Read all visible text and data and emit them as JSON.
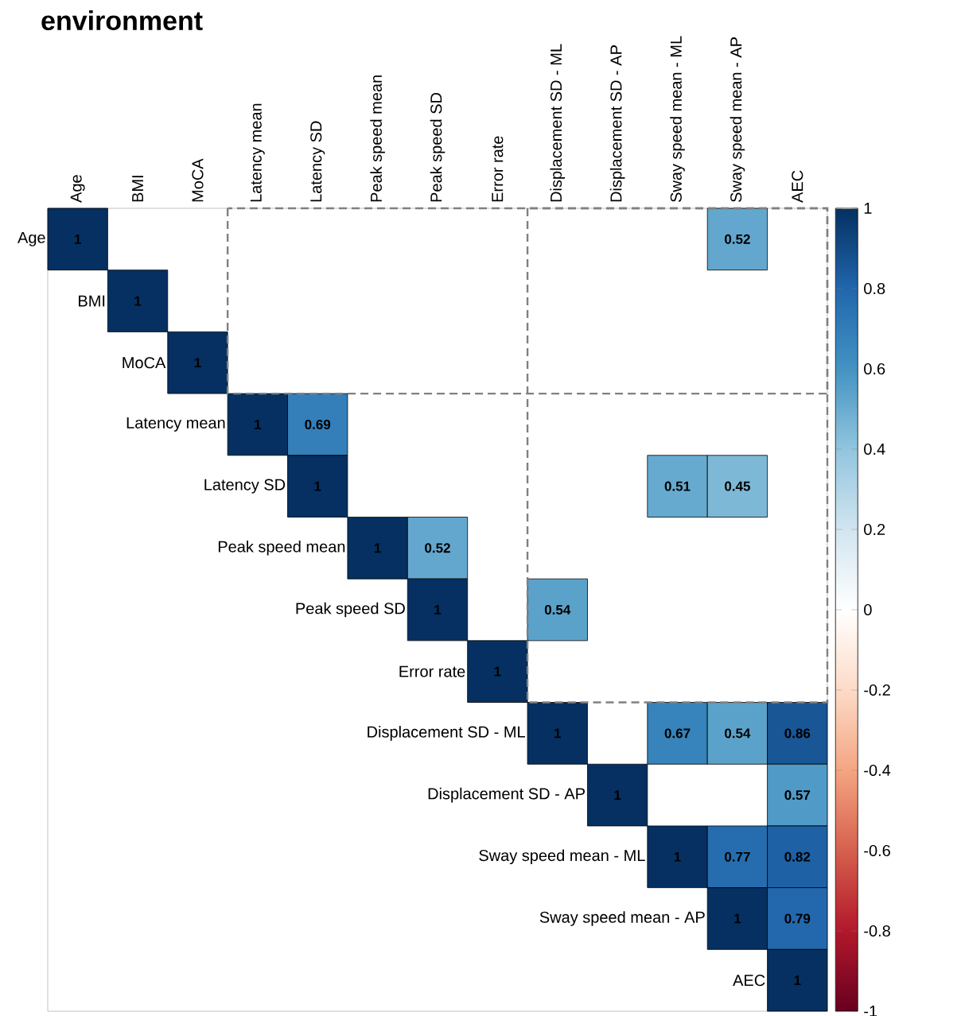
{
  "chart_data": {
    "type": "heatmap",
    "title": "environment",
    "categories": [
      "Age",
      "BMI",
      "MoCA",
      "Latency mean",
      "Latency SD",
      "Peak speed mean",
      "Peak speed SD",
      "Error rate",
      "Displacement SD - ML",
      "Displacement SD - AP",
      "Sway speed mean - ML",
      "Sway speed mean - AP",
      "AEC"
    ],
    "y_categories": [
      "Age",
      "BMI",
      "MoCA",
      "Latency mean",
      "Latency SD",
      "Peak speed mean",
      "Peak speed SD",
      "Error rate",
      "Displacement SD - ML",
      "Displacement SD - AP",
      "Sway speed mean - ML",
      "Sway speed mean - AP",
      "AEC"
    ],
    "cells": [
      [
        1,
        null,
        null,
        null,
        null,
        null,
        null,
        null,
        null,
        null,
        null,
        0.52,
        null
      ],
      [
        null,
        1,
        null,
        null,
        null,
        null,
        null,
        null,
        null,
        null,
        null,
        null,
        null
      ],
      [
        null,
        null,
        1,
        null,
        null,
        null,
        null,
        null,
        null,
        null,
        null,
        null,
        null
      ],
      [
        null,
        null,
        null,
        1,
        0.69,
        null,
        null,
        null,
        null,
        null,
        null,
        null,
        null
      ],
      [
        null,
        null,
        null,
        null,
        1,
        null,
        null,
        null,
        null,
        null,
        0.51,
        0.45,
        null
      ],
      [
        null,
        null,
        null,
        null,
        null,
        1,
        0.52,
        null,
        null,
        null,
        null,
        null,
        null
      ],
      [
        null,
        null,
        null,
        null,
        null,
        null,
        1,
        null,
        0.54,
        null,
        null,
        null,
        null
      ],
      [
        null,
        null,
        null,
        null,
        null,
        null,
        null,
        1,
        null,
        null,
        null,
        null,
        null
      ],
      [
        null,
        null,
        null,
        null,
        null,
        null,
        null,
        null,
        1,
        null,
        0.67,
        0.54,
        0.86
      ],
      [
        null,
        null,
        null,
        null,
        null,
        null,
        null,
        null,
        null,
        1,
        null,
        null,
        0.57
      ],
      [
        null,
        null,
        null,
        null,
        null,
        null,
        null,
        null,
        null,
        null,
        1,
        0.77,
        0.82
      ],
      [
        null,
        null,
        null,
        null,
        null,
        null,
        null,
        null,
        null,
        null,
        null,
        1,
        0.79
      ],
      [
        null,
        null,
        null,
        null,
        null,
        null,
        null,
        null,
        null,
        null,
        null,
        null,
        1
      ]
    ],
    "data_labels": true,
    "clim": [
      -1,
      1
    ],
    "cticks": [
      -1,
      -0.8,
      -0.6,
      -0.4,
      -0.2,
      0,
      0.2,
      0.4,
      0.6,
      0.8,
      1
    ]
  }
}
